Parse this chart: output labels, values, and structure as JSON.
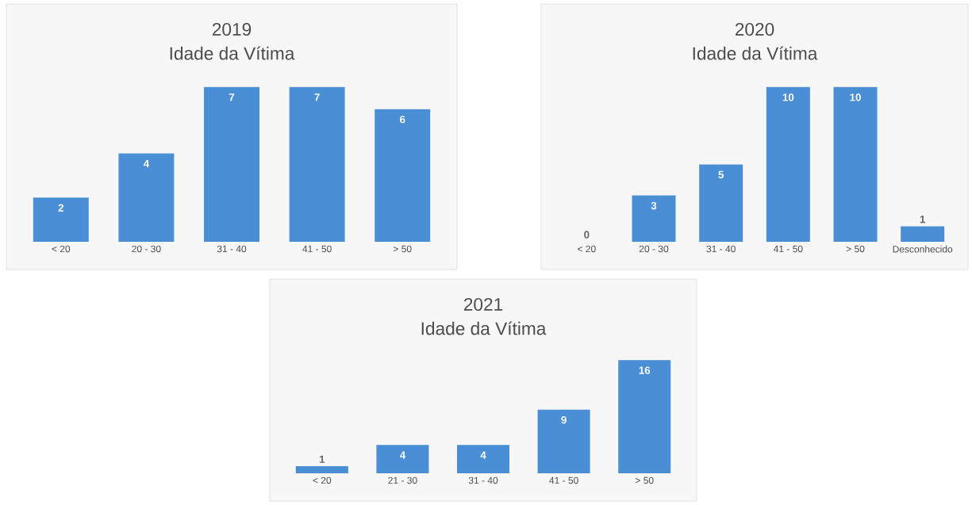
{
  "chart_data": [
    {
      "type": "bar",
      "title": "2019",
      "subtitle": "Idade da Vítima",
      "categories": [
        "< 20",
        "20 - 30",
        "31 - 40",
        "41 - 50",
        "> 50"
      ],
      "values": [
        2,
        4,
        7,
        7,
        6
      ],
      "color": "#4a8fd6",
      "data_labels": true
    },
    {
      "type": "bar",
      "title": "2020",
      "subtitle": "Idade da Vítima",
      "categories": [
        "< 20",
        "20 - 30",
        "31 - 40",
        "41 - 50",
        "> 50",
        "Desconhecido"
      ],
      "values": [
        0,
        3,
        5,
        10,
        10,
        1
      ],
      "color": "#4a8fd6",
      "data_labels": true
    },
    {
      "type": "bar",
      "title": "2021",
      "subtitle": "Idade da Vítima",
      "categories": [
        "< 20",
        "21 - 30",
        "31 - 40",
        "41 - 50",
        "> 50"
      ],
      "values": [
        1,
        4,
        4,
        9,
        16
      ],
      "color": "#4a8fd6",
      "data_labels": true
    }
  ]
}
